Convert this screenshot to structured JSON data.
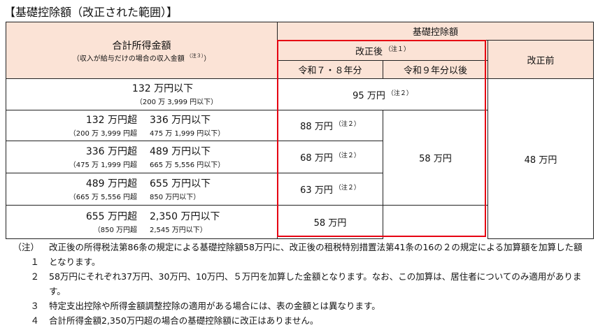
{
  "title": "【基礎控除額（改正された範囲）】",
  "header": {
    "income": "合計所得金額",
    "income_sub": "（収入が給与だけの場合の収入金額",
    "income_sub_note": "（注３）",
    "income_sub_close": "）",
    "deduction": "基礎控除額",
    "after": "改正後",
    "after_note": "（注１）",
    "r7_8": "令和７・８年分",
    "r9": "令和９年分以後",
    "before": "改正前"
  },
  "rows": [
    {
      "main": "132 万円以下",
      "sub": "（200 万 3,999 円以下）",
      "r7_8": "95 万円",
      "r7_8_note": "（注２）"
    },
    {
      "from": "132 万円超",
      "to": "336 万円以下",
      "sub_from": "（200 万 3,999 円超",
      "sub_to": "475 万 1,999 円以下）",
      "r7_8": "88 万円",
      "r7_8_note": "（注２）"
    },
    {
      "from": "336 万円超",
      "to": "489 万円以下",
      "sub_from": "（475 万 1,999 円超",
      "sub_to": "665 万 5,556 円以下）",
      "r7_8": "68 万円",
      "r7_8_note": "（注２）"
    },
    {
      "from": "489 万円超",
      "to": "655 万円以下",
      "sub_from": "（665 万 5,556 円超",
      "sub_to": "850 万円以下）",
      "r7_8": "63 万円",
      "r7_8_note": "（注２）"
    },
    {
      "from": "655 万円超",
      "to": "2,350 万円以下",
      "sub_from": "（850 万円超",
      "sub_to": "2,545 万円以下）",
      "r7_8": "58 万円"
    }
  ],
  "r9_value": "58 万円",
  "before_value": "48 万円",
  "notes": [
    {
      "label": "（注）１",
      "text": "改正後の所得税法第86条の規定による基礎控除額58万円に、改正後の租税特別措置法第41条の16の２の規定による加算額を加算した額となります。"
    },
    {
      "label": "２",
      "text": "58万円にそれぞれ37万円、30万円、10万円、５万円を加算した金額となります。なお、この加算は、居住者についてのみ適用があります。"
    },
    {
      "label": "３",
      "text": "特定支出控除や所得金額調整控除の適用がある場合には、表の金額とは異なります。"
    },
    {
      "label": "４",
      "text": "合計所得金額2,350万円超の場合の基礎控除額に改正はありません。"
    }
  ],
  "colors": {
    "header_bg": "#fbe3d6",
    "highlight": "#e60012"
  }
}
